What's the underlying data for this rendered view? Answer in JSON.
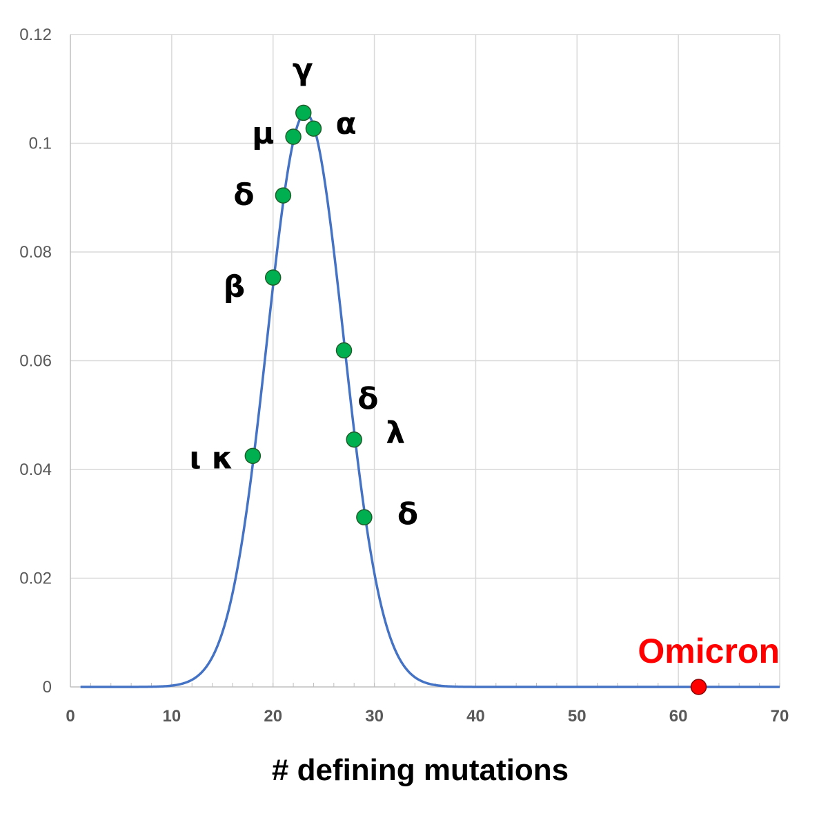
{
  "chart_data": {
    "type": "line",
    "xlabel": "# defining mutations",
    "ylabel": "",
    "xlim": [
      0,
      70
    ],
    "ylim": [
      0,
      0.12
    ],
    "x_ticks": [
      "0",
      "10",
      "20",
      "30",
      "40",
      "50",
      "60",
      "70"
    ],
    "y_ticks": [
      "0",
      "0.02",
      "0.04",
      "0.06",
      "0.08",
      "0.1",
      "0.12"
    ],
    "grid": true,
    "curve": {
      "type": "normal distribution",
      "mean": 23.2,
      "sd": 3.78,
      "x_range": [
        1,
        70
      ],
      "color": "#4472C4"
    },
    "points": [
      {
        "label": "ι κ",
        "x": 18,
        "y": 0.0425
      },
      {
        "label": "β",
        "x": 20,
        "y": 0.0753
      },
      {
        "label": "δ",
        "x": 21,
        "y": 0.0904
      },
      {
        "label": "μ",
        "x": 22,
        "y": 0.1012
      },
      {
        "label": "γ",
        "x": 23,
        "y": 0.1056
      },
      {
        "label": "α",
        "x": 24,
        "y": 0.1027
      },
      {
        "label": "",
        "x": 27,
        "y": 0.0619
      },
      {
        "label": "δ",
        "x": 28,
        "y": 0.0455
      },
      {
        "label": "λ",
        "x": 28,
        "y": 0.0455
      },
      {
        "label": "δ",
        "x": 29,
        "y": 0.0312
      }
    ],
    "highlight": {
      "label": "Omicron",
      "x": 62,
      "y": 0,
      "color": "#FF0000"
    },
    "point_color": "#00B050"
  }
}
